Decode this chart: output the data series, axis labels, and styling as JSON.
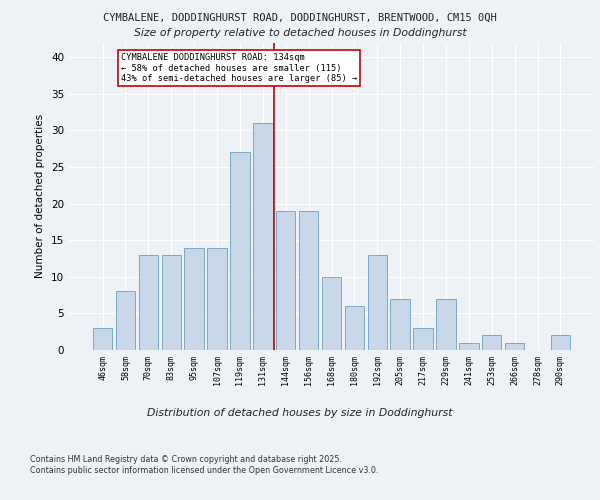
{
  "title1": "CYMBALENE, DODDINGHURST ROAD, DODDINGHURST, BRENTWOOD, CM15 0QH",
  "title2": "Size of property relative to detached houses in Doddinghurst",
  "xlabel": "Distribution of detached houses by size in Doddinghurst",
  "ylabel": "Number of detached properties",
  "categories": [
    "46sqm",
    "58sqm",
    "70sqm",
    "83sqm",
    "95sqm",
    "107sqm",
    "119sqm",
    "131sqm",
    "144sqm",
    "156sqm",
    "168sqm",
    "180sqm",
    "192sqm",
    "205sqm",
    "217sqm",
    "229sqm",
    "241sqm",
    "253sqm",
    "266sqm",
    "278sqm",
    "290sqm"
  ],
  "values": [
    3,
    8,
    13,
    13,
    14,
    14,
    27,
    31,
    19,
    19,
    10,
    6,
    13,
    7,
    3,
    7,
    1,
    2,
    1,
    0,
    2
  ],
  "bar_color": "#c8d8e8",
  "bar_edge_color": "#7aaac8",
  "reference_line_label": "CYMBALENE DODDINGHURST ROAD: 134sqm",
  "annotation_line1": "← 58% of detached houses are smaller (115)",
  "annotation_line2": "43% of semi-detached houses are larger (85) →",
  "vline_color": "#cc0000",
  "annotation_box_edge_color": "#cc0000",
  "ylim": [
    0,
    42
  ],
  "yticks": [
    0,
    5,
    10,
    15,
    20,
    25,
    30,
    35,
    40
  ],
  "footer1": "Contains HM Land Registry data © Crown copyright and database right 2025.",
  "footer2": "Contains public sector information licensed under the Open Government Licence v3.0.",
  "bg_color": "#eef2f7",
  "plot_bg_color": "#eef2f7"
}
